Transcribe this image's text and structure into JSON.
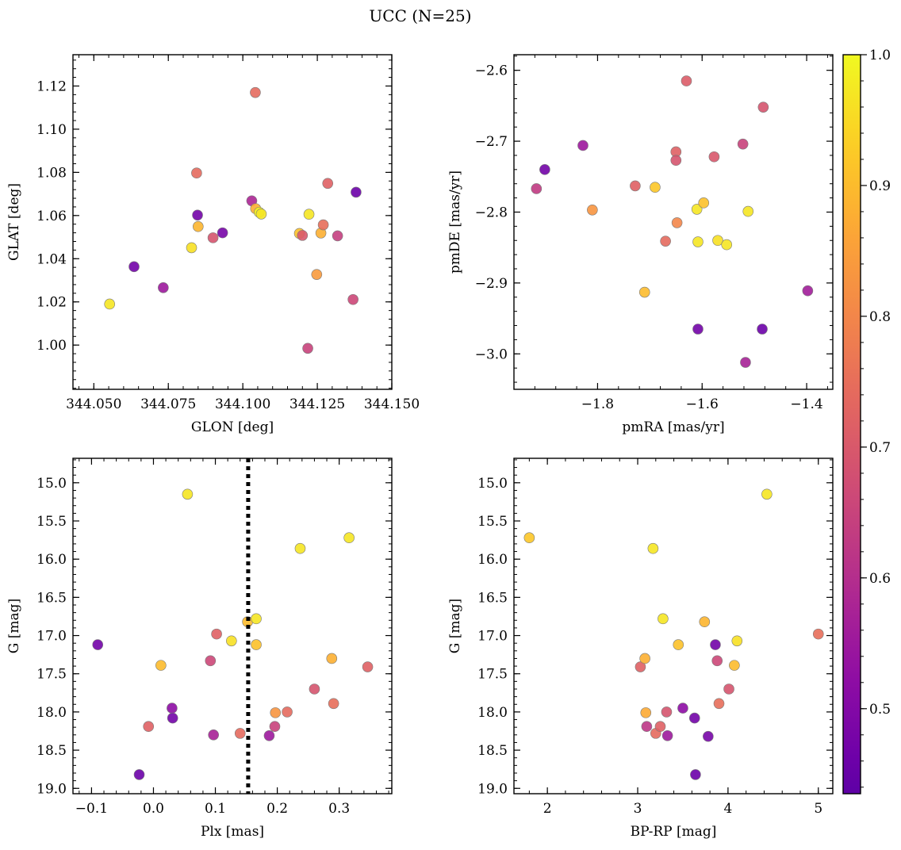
{
  "suptitle": "UCC (N=25)",
  "colorbar": {
    "min": 0.435,
    "max": 1.0,
    "ticks": [
      "0.5",
      "0.6",
      "0.7",
      "0.8",
      "0.9",
      "1.0"
    ],
    "tick_values": [
      0.5,
      0.6,
      0.7,
      0.8,
      0.9,
      1.0
    ],
    "colormap": "plasma"
  },
  "chart_data": [
    {
      "type": "scatter",
      "name": "sky",
      "xlabel": "GLON [deg]",
      "ylabel": "GLAT [deg]",
      "xlim": [
        344.043,
        344.15
      ],
      "ylim": [
        0.9795,
        1.1345
      ],
      "xticks": [
        344.05,
        344.075,
        344.1,
        344.125,
        344.15
      ],
      "xtick_labels": [
        "344.050",
        "344.075",
        "344.100",
        "344.125",
        "344.150"
      ],
      "yticks": [
        1.0,
        1.02,
        1.04,
        1.06,
        1.08,
        1.1,
        1.12
      ],
      "ytick_labels": [
        "1.00",
        "1.02",
        "1.04",
        "1.06",
        "1.08",
        "1.10",
        "1.12"
      ],
      "inverted_y": false,
      "vline": null,
      "points": [
        {
          "x": 344.0553,
          "y": 1.019,
          "c": 0.97
        },
        {
          "x": 344.0635,
          "y": 1.0363,
          "c": 0.47
        },
        {
          "x": 344.0733,
          "y": 1.0266,
          "c": 0.55
        },
        {
          "x": 344.0828,
          "y": 1.0451,
          "c": 0.96
        },
        {
          "x": 344.0845,
          "y": 1.0797,
          "c": 0.74
        },
        {
          "x": 344.0848,
          "y": 1.0602,
          "c": 0.47
        },
        {
          "x": 344.085,
          "y": 1.0549,
          "c": 0.89
        },
        {
          "x": 344.09,
          "y": 1.0497,
          "c": 0.69
        },
        {
          "x": 344.0932,
          "y": 1.052,
          "c": 0.48
        },
        {
          "x": 344.103,
          "y": 1.0668,
          "c": 0.58
        },
        {
          "x": 344.1042,
          "y": 1.117,
          "c": 0.74
        },
        {
          "x": 344.1043,
          "y": 1.0632,
          "c": 0.88
        },
        {
          "x": 344.1055,
          "y": 1.0615,
          "c": 0.99
        },
        {
          "x": 344.1062,
          "y": 1.0607,
          "c": 0.97
        },
        {
          "x": 344.119,
          "y": 1.0517,
          "c": 0.91
        },
        {
          "x": 344.12,
          "y": 1.0508,
          "c": 0.7
        },
        {
          "x": 344.1218,
          "y": 0.9985,
          "c": 0.65
        },
        {
          "x": 344.1222,
          "y": 1.0606,
          "c": 0.97
        },
        {
          "x": 344.1248,
          "y": 1.0327,
          "c": 0.84
        },
        {
          "x": 344.1262,
          "y": 1.0519,
          "c": 0.88
        },
        {
          "x": 344.127,
          "y": 1.0557,
          "c": 0.75
        },
        {
          "x": 344.1285,
          "y": 1.0749,
          "c": 0.72
        },
        {
          "x": 344.1318,
          "y": 1.0506,
          "c": 0.64
        },
        {
          "x": 344.137,
          "y": 1.0211,
          "c": 0.66
        },
        {
          "x": 344.138,
          "y": 1.0708,
          "c": 0.46
        }
      ]
    },
    {
      "type": "scatter",
      "name": "proper-motion",
      "xlabel": "pmRA [mas/yr]",
      "ylabel": "pmDE [mas/yr]",
      "xlim": [
        -1.96,
        -1.35
      ],
      "ylim": [
        -3.05,
        -2.578
      ],
      "xticks": [
        -1.8,
        -1.6,
        -1.4
      ],
      "xtick_labels": [
        "−1.8",
        "−1.6",
        "−1.4"
      ],
      "yticks": [
        -3.0,
        -2.9,
        -2.8,
        -2.7,
        -2.6
      ],
      "ytick_labels": [
        "−3.0",
        "−2.9",
        "−2.8",
        "−2.7",
        "−2.6"
      ],
      "inverted_y": false,
      "vline": null,
      "points": [
        {
          "x": -1.917,
          "y": -2.767,
          "c": 0.63
        },
        {
          "x": -1.901,
          "y": -2.74,
          "c": 0.47
        },
        {
          "x": -1.828,
          "y": -2.706,
          "c": 0.55
        },
        {
          "x": -1.81,
          "y": -2.797,
          "c": 0.83
        },
        {
          "x": -1.728,
          "y": -2.763,
          "c": 0.72
        },
        {
          "x": -1.71,
          "y": -2.913,
          "c": 0.9
        },
        {
          "x": -1.69,
          "y": -2.765,
          "c": 0.92
        },
        {
          "x": -1.67,
          "y": -2.841,
          "c": 0.74
        },
        {
          "x": -1.65,
          "y": -2.715,
          "c": 0.72
        },
        {
          "x": -1.65,
          "y": -2.727,
          "c": 0.69
        },
        {
          "x": -1.648,
          "y": -2.815,
          "c": 0.8
        },
        {
          "x": -1.63,
          "y": -2.615,
          "c": 0.71
        },
        {
          "x": -1.61,
          "y": -2.796,
          "c": 0.97
        },
        {
          "x": -1.608,
          "y": -2.842,
          "c": 0.97
        },
        {
          "x": -1.608,
          "y": -2.965,
          "c": 0.47
        },
        {
          "x": -1.597,
          "y": -2.787,
          "c": 0.91
        },
        {
          "x": -1.577,
          "y": -2.722,
          "c": 0.7
        },
        {
          "x": -1.57,
          "y": -2.84,
          "c": 0.96
        },
        {
          "x": -1.553,
          "y": -2.846,
          "c": 0.97
        },
        {
          "x": -1.522,
          "y": -2.704,
          "c": 0.65
        },
        {
          "x": -1.517,
          "y": -3.012,
          "c": 0.57
        },
        {
          "x": -1.512,
          "y": -2.799,
          "c": 0.97
        },
        {
          "x": -1.483,
          "y": -2.652,
          "c": 0.69
        },
        {
          "x": -1.485,
          "y": -2.965,
          "c": 0.46
        },
        {
          "x": -1.398,
          "y": -2.911,
          "c": 0.56
        }
      ]
    },
    {
      "type": "scatter",
      "name": "plx-mag",
      "xlabel": "Plx [mas]",
      "ylabel": "G [mag]",
      "xlim": [
        -0.13,
        0.385
      ],
      "ylim": [
        19.07,
        14.68
      ],
      "xticks": [
        -0.1,
        0.0,
        0.1,
        0.2,
        0.3
      ],
      "xtick_labels": [
        "−0.1",
        "0.0",
        "0.1",
        "0.2",
        "0.3"
      ],
      "yticks": [
        15.0,
        15.5,
        16.0,
        16.5,
        17.0,
        17.5,
        18.0,
        18.5,
        19.0
      ],
      "ytick_labels": [
        "15.0",
        "15.5",
        "16.0",
        "16.5",
        "17.0",
        "17.5",
        "18.0",
        "18.5",
        "19.0"
      ],
      "inverted_y": true,
      "vline": 0.153,
      "points": [
        {
          "x": -0.09,
          "y": 17.12,
          "c": 0.47
        },
        {
          "x": -0.023,
          "y": 18.82,
          "c": 0.46
        },
        {
          "x": -0.008,
          "y": 18.19,
          "c": 0.72
        },
        {
          "x": 0.012,
          "y": 17.39,
          "c": 0.9
        },
        {
          "x": 0.03,
          "y": 17.95,
          "c": 0.52
        },
        {
          "x": 0.031,
          "y": 18.08,
          "c": 0.47
        },
        {
          "x": 0.055,
          "y": 15.15,
          "c": 0.97
        },
        {
          "x": 0.092,
          "y": 17.33,
          "c": 0.66
        },
        {
          "x": 0.097,
          "y": 18.3,
          "c": 0.57
        },
        {
          "x": 0.102,
          "y": 16.98,
          "c": 0.72
        },
        {
          "x": 0.126,
          "y": 17.07,
          "c": 0.96
        },
        {
          "x": 0.14,
          "y": 18.28,
          "c": 0.74
        },
        {
          "x": 0.152,
          "y": 16.82,
          "c": 0.9
        },
        {
          "x": 0.166,
          "y": 16.78,
          "c": 0.97
        },
        {
          "x": 0.166,
          "y": 17.12,
          "c": 0.91
        },
        {
          "x": 0.187,
          "y": 18.31,
          "c": 0.55
        },
        {
          "x": 0.196,
          "y": 18.19,
          "c": 0.65
        },
        {
          "x": 0.197,
          "y": 18.01,
          "c": 0.83
        },
        {
          "x": 0.216,
          "y": 18.0,
          "c": 0.74
        },
        {
          "x": 0.237,
          "y": 15.86,
          "c": 0.97
        },
        {
          "x": 0.26,
          "y": 17.7,
          "c": 0.69
        },
        {
          "x": 0.288,
          "y": 17.3,
          "c": 0.88
        },
        {
          "x": 0.291,
          "y": 17.89,
          "c": 0.75
        },
        {
          "x": 0.316,
          "y": 15.72,
          "c": 0.97
        },
        {
          "x": 0.346,
          "y": 17.41,
          "c": 0.72
        }
      ]
    },
    {
      "type": "scatter",
      "name": "cmd",
      "xlabel": "BP-RP [mag]",
      "ylabel": "G [mag]",
      "xlim": [
        1.63,
        5.16
      ],
      "ylim": [
        19.07,
        14.68
      ],
      "xticks": [
        2,
        3,
        4,
        5
      ],
      "xtick_labels": [
        "2",
        "3",
        "4",
        "5"
      ],
      "yticks": [
        15.0,
        15.5,
        16.0,
        16.5,
        17.0,
        17.5,
        18.0,
        18.5,
        19.0
      ],
      "ytick_labels": [
        "15.0",
        "15.5",
        "16.0",
        "16.5",
        "17.0",
        "17.5",
        "18.0",
        "18.5",
        "19.0"
      ],
      "inverted_y": true,
      "vline": null,
      "points": [
        {
          "x": 1.8,
          "y": 15.72,
          "c": 0.92
        },
        {
          "x": 3.03,
          "y": 17.41,
          "c": 0.72
        },
        {
          "x": 3.08,
          "y": 17.3,
          "c": 0.88
        },
        {
          "x": 3.09,
          "y": 18.01,
          "c": 0.87
        },
        {
          "x": 3.1,
          "y": 18.19,
          "c": 0.62
        },
        {
          "x": 3.17,
          "y": 15.86,
          "c": 0.97
        },
        {
          "x": 3.2,
          "y": 18.28,
          "c": 0.74
        },
        {
          "x": 3.25,
          "y": 18.19,
          "c": 0.72
        },
        {
          "x": 3.28,
          "y": 16.78,
          "c": 0.97
        },
        {
          "x": 3.32,
          "y": 18.0,
          "c": 0.69
        },
        {
          "x": 3.33,
          "y": 18.31,
          "c": 0.55
        },
        {
          "x": 3.45,
          "y": 17.12,
          "c": 0.91
        },
        {
          "x": 3.5,
          "y": 17.95,
          "c": 0.52
        },
        {
          "x": 3.63,
          "y": 18.08,
          "c": 0.47
        },
        {
          "x": 3.64,
          "y": 18.82,
          "c": 0.46
        },
        {
          "x": 3.74,
          "y": 16.82,
          "c": 0.89
        },
        {
          "x": 3.78,
          "y": 18.32,
          "c": 0.48
        },
        {
          "x": 3.86,
          "y": 17.12,
          "c": 0.47
        },
        {
          "x": 3.88,
          "y": 17.33,
          "c": 0.66
        },
        {
          "x": 3.9,
          "y": 17.89,
          "c": 0.75
        },
        {
          "x": 4.01,
          "y": 17.7,
          "c": 0.69
        },
        {
          "x": 4.07,
          "y": 17.39,
          "c": 0.9
        },
        {
          "x": 4.1,
          "y": 17.07,
          "c": 0.96
        },
        {
          "x": 4.43,
          "y": 15.15,
          "c": 0.97
        },
        {
          "x": 5.0,
          "y": 16.98,
          "c": 0.75
        }
      ]
    }
  ]
}
